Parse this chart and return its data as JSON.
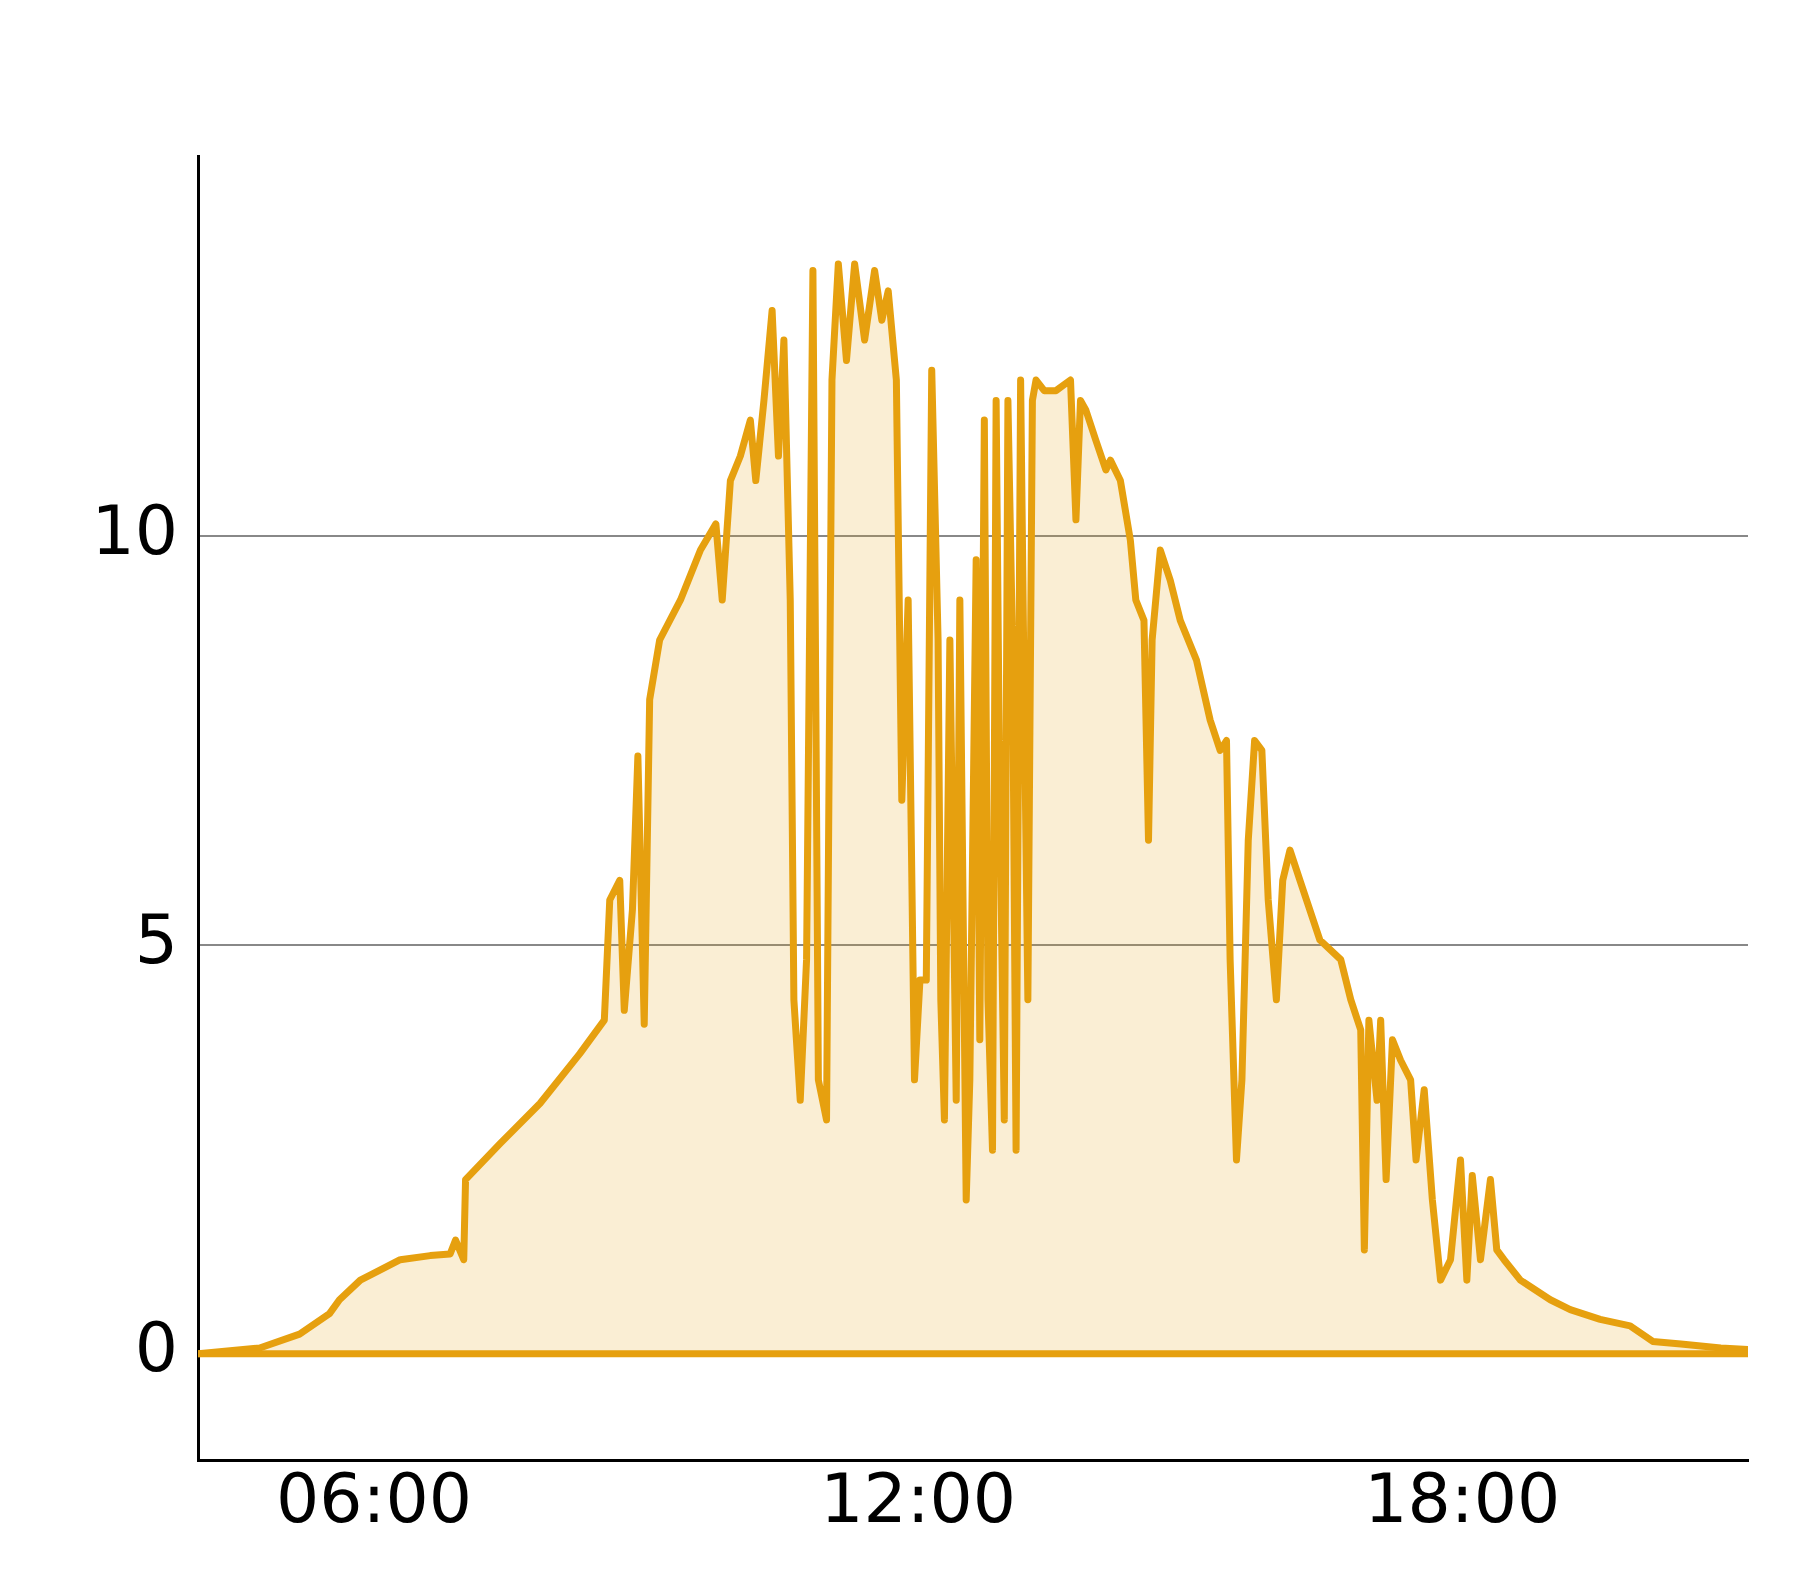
{
  "chart_data": {
    "type": "area",
    "xlim": [
      4.06,
      21.15
    ],
    "ylim": [
      -1.3,
      14.65
    ],
    "xticks": [
      {
        "value": 6,
        "label": "06:00"
      },
      {
        "value": 12,
        "label": "12:00"
      },
      {
        "value": 18,
        "label": "18:00"
      }
    ],
    "yticks": [
      0,
      5,
      10
    ],
    "grid": "y",
    "legend": false,
    "marker": "none",
    "line_style": "solid",
    "series": [
      {
        "color": "#e6a00f",
        "x": [
          4.06,
          4.74,
          5.18,
          5.51,
          5.62,
          5.85,
          6.29,
          6.62,
          6.84,
          6.9,
          6.99,
          7.01,
          7.39,
          7.83,
          8.27,
          8.54,
          8.6,
          8.71,
          8.76,
          8.85,
          8.91,
          8.98,
          9.04,
          9.15,
          9.38,
          9.6,
          9.77,
          9.84,
          9.93,
          10.04,
          10.15,
          10.21,
          10.3,
          10.39,
          10.46,
          10.52,
          10.59,
          10.63,
          10.7,
          10.77,
          10.84,
          10.9,
          10.99,
          11.05,
          11.12,
          11.21,
          11.3,
          11.41,
          11.52,
          11.6,
          11.67,
          11.76,
          11.82,
          11.89,
          11.96,
          12.02,
          12.09,
          12.15,
          12.22,
          12.25,
          12.29,
          12.35,
          12.42,
          12.46,
          12.53,
          12.57,
          12.64,
          12.68,
          12.73,
          12.77,
          12.82,
          12.86,
          12.9,
          12.95,
          12.99,
          13.04,
          13.08,
          13.13,
          13.17,
          13.21,
          13.26,
          13.3,
          13.39,
          13.52,
          13.68,
          13.74,
          13.79,
          13.85,
          13.96,
          14.07,
          14.12,
          14.23,
          14.34,
          14.4,
          14.49,
          14.54,
          14.58,
          14.67,
          14.78,
          14.89,
          15.07,
          15.22,
          15.33,
          15.4,
          15.44,
          15.51,
          15.57,
          15.64,
          15.71,
          15.79,
          15.86,
          15.95,
          16.02,
          16.1,
          16.21,
          16.43,
          16.66,
          16.77,
          16.88,
          16.92,
          16.97,
          17.06,
          17.1,
          17.16,
          17.23,
          17.32,
          17.43,
          17.49,
          17.58,
          17.67,
          17.76,
          17.87,
          17.98,
          18.05,
          18.11,
          18.2,
          18.31,
          18.38,
          18.46,
          18.64,
          18.97,
          19.19,
          19.52,
          19.85,
          20.1,
          20.41,
          20.85,
          21.15
        ],
        "values": [
          0,
          0.07,
          0.24,
          0.49,
          0.66,
          0.9,
          1.15,
          1.2,
          1.22,
          1.39,
          1.15,
          2.13,
          2.57,
          3.06,
          3.67,
          4.08,
          5.55,
          5.79,
          4.2,
          5.43,
          7.31,
          4.03,
          8.0,
          8.73,
          9.22,
          9.83,
          10.15,
          9.22,
          10.68,
          10.98,
          11.42,
          10.68,
          11.66,
          12.76,
          10.98,
          12.4,
          9.22,
          4.33,
          3.1,
          4.82,
          13.25,
          3.35,
          2.86,
          11.91,
          13.33,
          12.15,
          13.33,
          12.4,
          13.25,
          12.64,
          13.0,
          11.91,
          6.77,
          9.22,
          3.35,
          4.57,
          4.57,
          12.03,
          8.73,
          4.33,
          2.86,
          8.73,
          3.1,
          9.22,
          1.88,
          3.35,
          9.71,
          3.84,
          11.42,
          4.33,
          2.49,
          11.66,
          6.77,
          2.86,
          11.66,
          8.73,
          2.49,
          11.91,
          8.0,
          4.33,
          11.66,
          11.91,
          11.78,
          11.78,
          11.91,
          10.2,
          11.66,
          11.54,
          11.17,
          10.81,
          10.93,
          10.68,
          9.95,
          9.22,
          8.97,
          6.28,
          8.73,
          9.83,
          9.46,
          8.97,
          8.48,
          7.75,
          7.38,
          7.5,
          4.82,
          2.37,
          3.35,
          6.28,
          7.5,
          7.38,
          5.55,
          4.33,
          5.79,
          6.16,
          5.79,
          5.06,
          4.82,
          4.33,
          3.96,
          1.27,
          4.08,
          3.1,
          4.08,
          2.13,
          3.84,
          3.59,
          3.35,
          2.37,
          3.23,
          1.88,
          0.9,
          1.15,
          2.37,
          0.9,
          2.18,
          1.15,
          2.13,
          1.27,
          1.15,
          0.9,
          0.66,
          0.54,
          0.42,
          0.34,
          0.15,
          0.12,
          0.07,
          0.05
        ]
      }
    ]
  }
}
